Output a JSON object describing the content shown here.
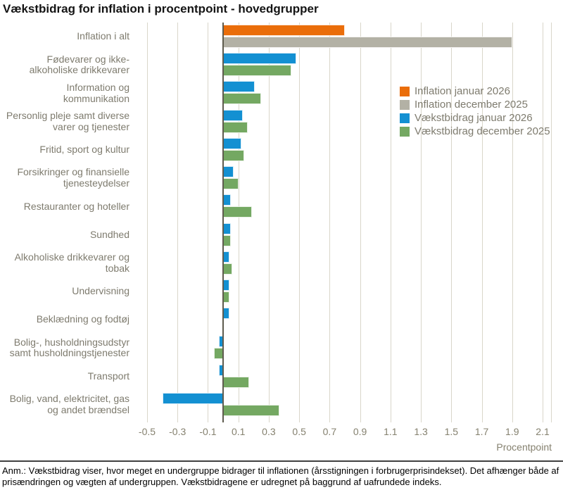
{
  "title": "Vækstbidrag for inflation i procentpoint - hovedgrupper",
  "axis_label": "Procentpoint",
  "footnote": "Anm.: Vækstbidrag viser, hvor meget en undergruppe bidrager til inflationen (årsstigningen i forbrugerprisindekset). Det afhænger både af prisændringen og vægten af undergruppen. Vækstbidragene er udregnet på baggrund af uafrundede indeks.",
  "colors": {
    "orange": "#ea6d0a",
    "gray": "#b3b1a5",
    "blue": "#1390d2",
    "green": "#74a862",
    "gridline": "#d9d6ca",
    "zero_line": "#5e5b4e",
    "label_text": "#7e7b6e",
    "title_text": "#141414"
  },
  "chart_data": {
    "type": "bar",
    "orientation": "horizontal",
    "title": "Vækstbidrag for inflation i procentpoint - hovedgrupper",
    "xlabel": "Procentpoint",
    "xlim": [
      -0.56,
      2.16
    ],
    "grid": true,
    "legend_position": "inside upper right",
    "ticks": [
      -0.5,
      -0.3,
      -0.1,
      0.1,
      0.3,
      0.5,
      0.7,
      0.9,
      1.1,
      1.3,
      1.5,
      1.7,
      1.9,
      2.1
    ],
    "tick_labels": [
      "-0.5",
      "-0.3",
      "-0.1",
      "0.1",
      "0.3",
      "0.5",
      "0.7",
      "0.9",
      "1.1",
      "1.3",
      "1.5",
      "1.7",
      "1.9",
      "2.1"
    ],
    "categories": [
      "Inflation i alt",
      "Fødevarer og ikke-alkoholiske drikkevarer",
      "Information og kommunikation",
      "Personlig pleje samt diverse varer og tjenester",
      "Fritid, sport og kultur",
      "Forsikringer og finansielle tjenesteydelser",
      "Restauranter og hoteller",
      "Sundhed",
      "Alkoholiske drikkevarer og tobak",
      "Undervisning",
      "Beklædning og fodtøj",
      "Bolig-, husholdningsudstyr samt husholdningstjenester",
      "Transport",
      "Bolig, vand, elektricitet, gas og andet brændsel"
    ],
    "series": [
      {
        "name": "Inflation januar 2026",
        "color": "#ea6d0a",
        "values": [
          0.8,
          null,
          null,
          null,
          null,
          null,
          null,
          null,
          null,
          null,
          null,
          null,
          null,
          null
        ]
      },
      {
        "name": "Inflation december 2025",
        "color": "#b3b1a5",
        "values": [
          1.9,
          null,
          null,
          null,
          null,
          null,
          null,
          null,
          null,
          null,
          null,
          null,
          null,
          null
        ]
      },
      {
        "name": "Vækstbidrag januar 2026",
        "color": "#1390d2",
        "values": [
          null,
          0.48,
          0.21,
          0.13,
          0.12,
          0.07,
          0.05,
          0.05,
          0.04,
          0.04,
          0.04,
          -0.03,
          -0.03,
          -0.4
        ]
      },
      {
        "name": "Vækstbidrag december 2025",
        "color": "#74a862",
        "values": [
          null,
          0.45,
          0.25,
          0.16,
          0.14,
          0.1,
          0.19,
          0.05,
          0.06,
          0.04,
          0,
          -0.06,
          0.17,
          0.37
        ]
      }
    ]
  }
}
